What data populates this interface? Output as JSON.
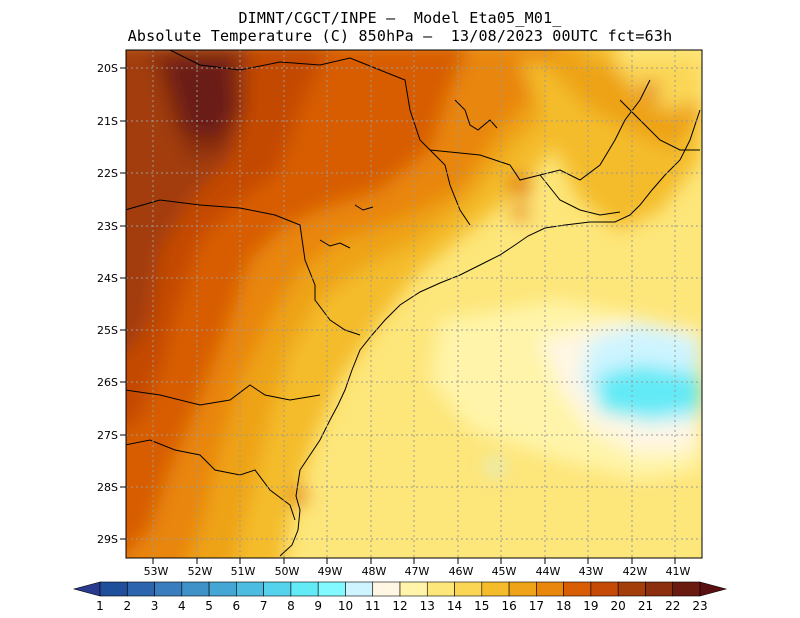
{
  "title_line1": "DIMNT/CGCT/INPE –  Model Eta05_M01_",
  "title_line2": "Absolute Temperature (C) 850hPa –  13/08/2023 00UTC fct=63h",
  "lat_labels": [
    "20S",
    "21S",
    "22S",
    "23S",
    "24S",
    "25S",
    "26S",
    "27S",
    "28S",
    "29S"
  ],
  "lon_labels": [
    "53W",
    "52W",
    "51W",
    "50W",
    "49W",
    "48W",
    "47W",
    "46W",
    "45W",
    "44W",
    "43W",
    "42W",
    "41W"
  ],
  "colorbar": {
    "labels": [
      "1",
      "2",
      "3",
      "4",
      "5",
      "6",
      "7",
      "8",
      "9",
      "10",
      "11",
      "12",
      "13",
      "14",
      "15",
      "16",
      "17",
      "18",
      "19",
      "20",
      "21",
      "22",
      "23"
    ],
    "colors": [
      "#2a3a8c",
      "#1f4e9b",
      "#2c64ad",
      "#3a7dbe",
      "#3f92c8",
      "#44a6d4",
      "#4cbde0",
      "#55d3ec",
      "#62eaf6",
      "#82f8ff",
      "#cdf4ff",
      "#fff7e3",
      "#fff4a9",
      "#fde67a",
      "#fbd655",
      "#f4bc2b",
      "#eea318",
      "#e9860c",
      "#d85d04",
      "#c44a05",
      "#a33e0b",
      "#8b2f0f",
      "#6b1a12",
      "#5a0f10"
    ]
  },
  "map": {
    "projection": "lat-lon",
    "lon_range": [
      -53.8,
      -40.6
    ],
    "lat_range": [
      -29.4,
      -19.8
    ],
    "units": "C",
    "level": "850hPa"
  }
}
